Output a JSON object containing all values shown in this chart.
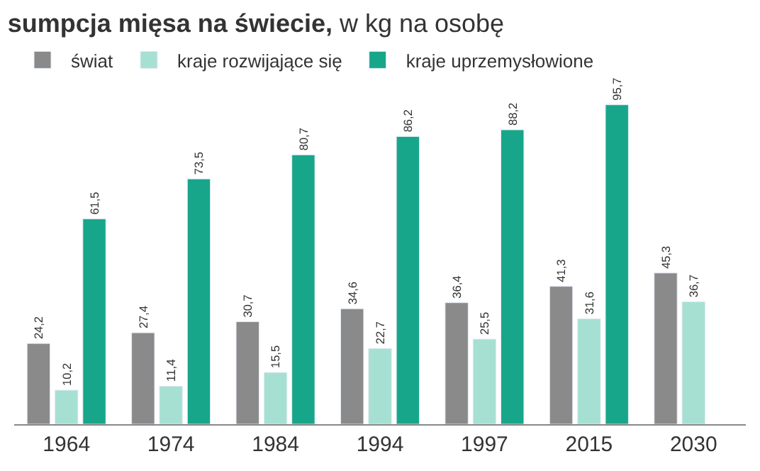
{
  "chart_data": {
    "type": "bar",
    "title": "sumpcja mięsa na świecie,",
    "subtitle": "w kg na osobę",
    "categories": [
      "1964",
      "1974",
      "1984",
      "1994",
      "1997",
      "2015",
      "2030"
    ],
    "series": [
      {
        "name": "świat",
        "color": "#8a8a8a",
        "values": [
          24.2,
          27.4,
          30.7,
          34.6,
          36.4,
          41.3,
          45.3
        ],
        "value_labels": [
          "24,2",
          "27,4",
          "30,7",
          "34,6",
          "36,4",
          "41,3",
          "45,3"
        ]
      },
      {
        "name": "kraje rozwijające się",
        "color": "#a6e0d2",
        "values": [
          10.2,
          11.4,
          15.5,
          22.7,
          25.5,
          31.6,
          36.7
        ],
        "value_labels": [
          "10,2",
          "11,4",
          "15,5",
          "22,7",
          "25,5",
          "31,6",
          "36,7"
        ]
      },
      {
        "name": "kraje uprzemysłowione",
        "color": "#17a689",
        "values": [
          61.5,
          73.5,
          80.7,
          86.2,
          88.2,
          95.7,
          null
        ],
        "value_labels": [
          "61,5",
          "73,5",
          "80,7",
          "86,2",
          "88,2",
          "95,7",
          null
        ]
      }
    ],
    "legend": "top left"
  }
}
